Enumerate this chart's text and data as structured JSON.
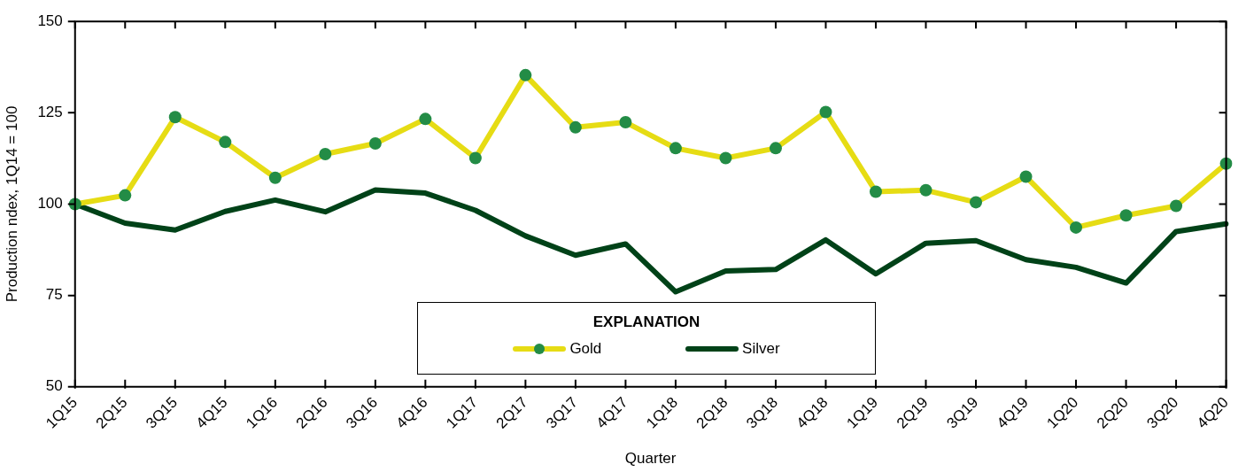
{
  "chart_data": {
    "type": "line",
    "xlabel": "Quarter",
    "ylabel": "Production ndex, 1Q14 = 100",
    "legend_title": "EXPLANATION",
    "categories": [
      "1Q15",
      "2Q15",
      "3Q15",
      "4Q15",
      "1Q16",
      "2Q16",
      "3Q16",
      "4Q16",
      "1Q17",
      "2Q17",
      "3Q17",
      "4Q17",
      "1Q18",
      "2Q18",
      "3Q18",
      "4Q18",
      "1Q19",
      "2Q19",
      "3Q19",
      "4Q19",
      "1Q20",
      "2Q20",
      "3Q20",
      "4Q20"
    ],
    "series": [
      {
        "name": "Gold",
        "color": "#e6dc14",
        "marker": "circle",
        "values": [
          100,
          102.4,
          123.8,
          117.0,
          107.2,
          113.7,
          116.6,
          123.3,
          112.6,
          135.3,
          121.0,
          122.4,
          115.3,
          112.6,
          115.3,
          125.2,
          103.4,
          103.8,
          100.5,
          107.5,
          93.6,
          96.9,
          99.5,
          111.1
        ]
      },
      {
        "name": "Silver",
        "color": "#004218",
        "marker": "none",
        "values": [
          100,
          94.8,
          92.9,
          98.0,
          101.1,
          97.9,
          103.9,
          103.0,
          98.3,
          91.3,
          86.0,
          89.1,
          76.0,
          81.7,
          82.1,
          90.2,
          80.9,
          89.3,
          90.0,
          84.8,
          82.7,
          78.4,
          92.5,
          94.6
        ]
      }
    ],
    "ylim": [
      50,
      150
    ],
    "yticks": [
      50,
      75,
      100,
      125,
      150
    ],
    "grid": false,
    "legend": "bottom",
    "line_style": "solid"
  }
}
